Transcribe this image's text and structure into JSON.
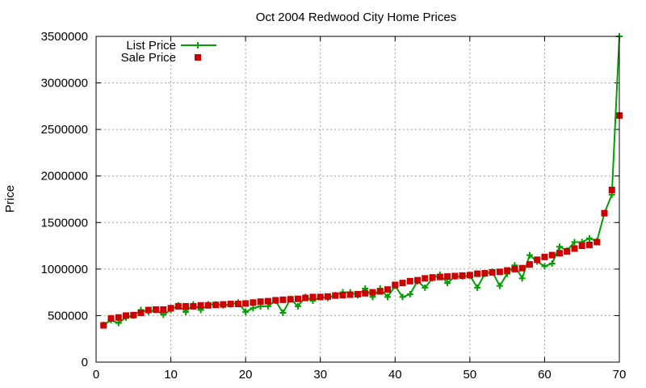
{
  "chart_data": {
    "type": "line",
    "title": "Oct 2004 Redwood City Home Prices",
    "xlabel": "",
    "ylabel": "Price",
    "xlim": [
      0,
      70
    ],
    "ylim": [
      0,
      3500000
    ],
    "x_ticks": [
      0,
      10,
      20,
      30,
      40,
      50,
      60,
      70
    ],
    "y_ticks": [
      0,
      500000,
      1000000,
      1500000,
      2000000,
      2500000,
      3000000,
      3500000
    ],
    "grid": true,
    "legend_position": "top-left",
    "series": [
      {
        "name": "List Price",
        "style": "line+cross",
        "color": "#00a000",
        "x": [
          1,
          2,
          3,
          4,
          5,
          6,
          7,
          8,
          9,
          10,
          11,
          12,
          13,
          14,
          15,
          16,
          17,
          18,
          19,
          20,
          21,
          22,
          23,
          24,
          25,
          26,
          27,
          28,
          29,
          30,
          31,
          32,
          33,
          34,
          35,
          36,
          37,
          38,
          39,
          40,
          41,
          42,
          43,
          44,
          45,
          46,
          47,
          48,
          49,
          50,
          51,
          52,
          53,
          54,
          55,
          56,
          57,
          58,
          59,
          60,
          61,
          62,
          63,
          64,
          65,
          66,
          67,
          68,
          69,
          70
        ],
        "values": [
          400000,
          450000,
          420000,
          480000,
          500000,
          560000,
          540000,
          560000,
          510000,
          560000,
          610000,
          540000,
          620000,
          560000,
          620000,
          620000,
          610000,
          620000,
          640000,
          540000,
          580000,
          600000,
          600000,
          660000,
          530000,
          680000,
          600000,
          700000,
          660000,
          700000,
          690000,
          720000,
          750000,
          750000,
          720000,
          790000,
          700000,
          790000,
          700000,
          820000,
          700000,
          730000,
          870000,
          800000,
          900000,
          940000,
          850000,
          920000,
          920000,
          930000,
          800000,
          950000,
          970000,
          820000,
          950000,
          1040000,
          900000,
          1150000,
          1080000,
          1030000,
          1060000,
          1240000,
          1200000,
          1290000,
          1290000,
          1330000,
          1300000,
          1600000,
          1800000,
          3500000
        ]
      },
      {
        "name": "Sale Price",
        "style": "square",
        "color": "#cc0000",
        "x": [
          1,
          2,
          3,
          4,
          5,
          6,
          7,
          8,
          9,
          10,
          11,
          12,
          13,
          14,
          15,
          16,
          17,
          18,
          19,
          20,
          21,
          22,
          23,
          24,
          25,
          26,
          27,
          28,
          29,
          30,
          31,
          32,
          33,
          34,
          35,
          36,
          37,
          38,
          39,
          40,
          41,
          42,
          43,
          44,
          45,
          46,
          47,
          48,
          49,
          50,
          51,
          52,
          53,
          54,
          55,
          56,
          57,
          58,
          59,
          60,
          61,
          62,
          63,
          64,
          65,
          66,
          67,
          68,
          69,
          70
        ],
        "values": [
          395000,
          470000,
          480000,
          500000,
          505000,
          530000,
          560000,
          565000,
          565000,
          580000,
          600000,
          600000,
          600000,
          610000,
          610000,
          615000,
          620000,
          625000,
          625000,
          630000,
          640000,
          650000,
          655000,
          665000,
          670000,
          675000,
          680000,
          690000,
          700000,
          700000,
          705000,
          715000,
          720000,
          725000,
          730000,
          740000,
          750000,
          760000,
          780000,
          830000,
          850000,
          870000,
          880000,
          900000,
          910000,
          915000,
          920000,
          925000,
          930000,
          935000,
          950000,
          955000,
          965000,
          970000,
          985000,
          1000000,
          1010000,
          1050000,
          1100000,
          1130000,
          1150000,
          1170000,
          1190000,
          1220000,
          1250000,
          1260000,
          1290000,
          1600000,
          1850000,
          2650000
        ]
      }
    ]
  }
}
